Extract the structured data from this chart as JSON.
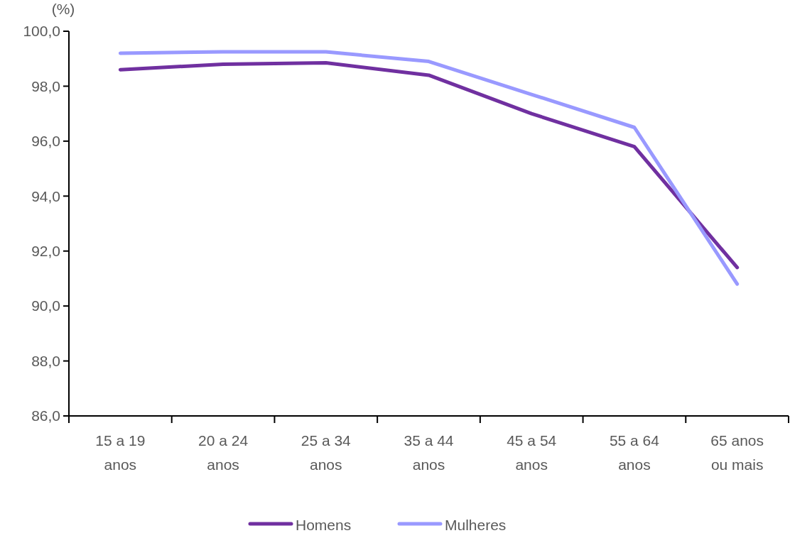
{
  "chart_data": {
    "type": "line",
    "ylabel": "(%)",
    "categories": [
      "15 a 19 anos",
      "20 a 24 anos",
      "25 a 34 anos",
      "35 a 44 anos",
      "45 a 54 anos",
      "55 a 64 anos",
      "65 anos ou mais"
    ],
    "ylim": [
      86,
      100
    ],
    "yticks": [
      {
        "value": 86,
        "label": "86,0"
      },
      {
        "value": 88,
        "label": "88,0"
      },
      {
        "value": 90,
        "label": "90,0"
      },
      {
        "value": 92,
        "label": "92,0"
      },
      {
        "value": 94,
        "label": "94,0"
      },
      {
        "value": 96,
        "label": "96,0"
      },
      {
        "value": 98,
        "label": "98,0"
      },
      {
        "value": 100,
        "label": "100,0"
      }
    ],
    "grid": false,
    "legend": "bottom",
    "marker": "none",
    "line_style": "solid",
    "series": [
      {
        "name": "Homens",
        "color": "#7030a0",
        "values": [
          98.6,
          98.8,
          98.85,
          98.4,
          97.0,
          95.8,
          91.4
        ]
      },
      {
        "name": "Mulheres",
        "color": "#9999ff",
        "values": [
          99.2,
          99.25,
          99.25,
          98.9,
          97.7,
          96.5,
          90.8
        ]
      }
    ]
  }
}
